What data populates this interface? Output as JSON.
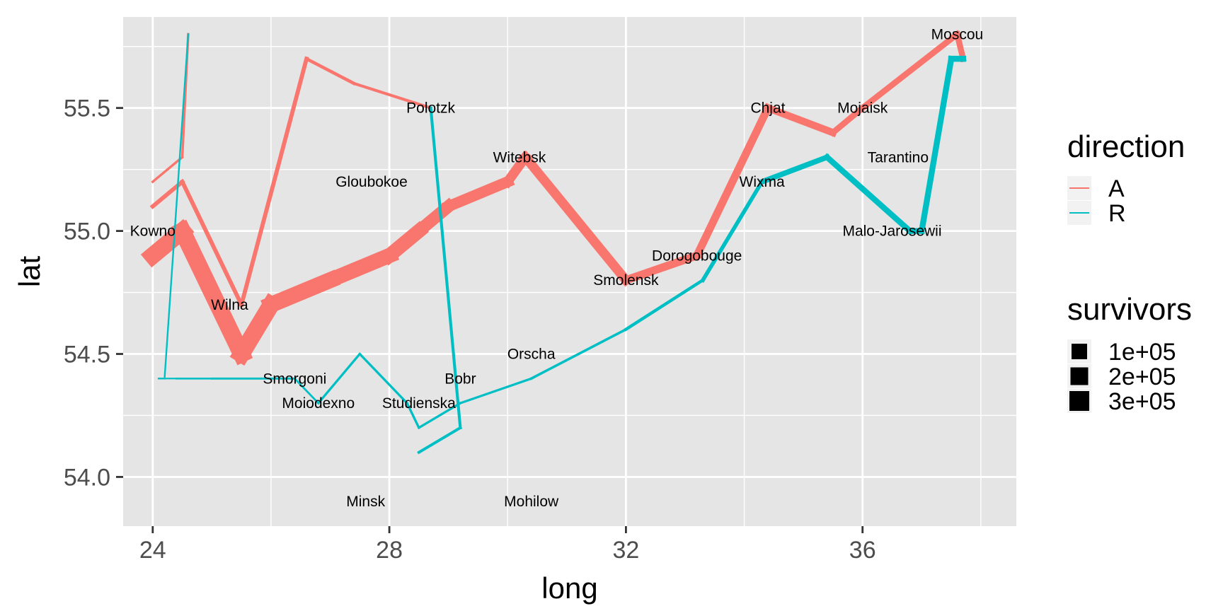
{
  "chart_data": {
    "type": "line",
    "xlabel": "long",
    "ylabel": "lat",
    "xlim": [
      23.5,
      38.6
    ],
    "ylim": [
      53.8,
      55.87
    ],
    "x_ticks": [
      24,
      28,
      32,
      36
    ],
    "x_tick_labels": [
      "24",
      "28",
      "32",
      "36"
    ],
    "y_ticks": [
      54.0,
      54.5,
      55.0,
      55.5
    ],
    "y_tick_labels": [
      "54.0",
      "54.5",
      "55.0",
      "55.5"
    ],
    "panel_background": "#e5e5e5",
    "grid": true,
    "legend": {
      "position": "right",
      "direction": {
        "title": "direction",
        "entries": [
          {
            "label": "A",
            "color": "#f8766d"
          },
          {
            "label": "R",
            "color": "#00bfc4"
          }
        ]
      },
      "survivors": {
        "title": "survivors",
        "entries": [
          "1e+05",
          "2e+05",
          "3e+05"
        ]
      }
    },
    "troops": [
      {
        "group": 1,
        "direction": "A",
        "points": [
          [
            24.0,
            54.9,
            340000
          ],
          [
            24.5,
            55.0,
            340000
          ],
          [
            25.5,
            54.5,
            340000
          ],
          [
            26.0,
            54.7,
            320000
          ],
          [
            27.0,
            54.8,
            300000
          ],
          [
            28.0,
            54.9,
            280000
          ],
          [
            28.5,
            55.0,
            240000
          ],
          [
            29.0,
            55.1,
            210000
          ],
          [
            30.0,
            55.2,
            180000
          ],
          [
            30.3,
            55.3,
            175000
          ],
          [
            32.0,
            54.8,
            145000
          ],
          [
            33.2,
            54.9,
            140000
          ],
          [
            34.4,
            55.5,
            127100
          ],
          [
            35.5,
            55.4,
            100000
          ],
          [
            36.0,
            55.5,
            100000
          ],
          [
            37.6,
            55.8,
            100000
          ],
          [
            37.7,
            55.7,
            100000
          ]
        ]
      },
      {
        "group": 1,
        "direction": "R",
        "points": [
          [
            37.7,
            55.7,
            100000
          ],
          [
            37.5,
            55.7,
            98000
          ],
          [
            37.0,
            55.0,
            97000
          ],
          [
            36.8,
            55.0,
            96000
          ],
          [
            35.4,
            55.3,
            87000
          ],
          [
            34.3,
            55.2,
            55000
          ],
          [
            33.3,
            54.8,
            37000
          ],
          [
            32.0,
            54.6,
            24000
          ],
          [
            30.4,
            54.4,
            20000
          ],
          [
            29.2,
            54.3,
            20000
          ],
          [
            28.5,
            54.2,
            20000
          ],
          [
            28.3,
            54.3,
            20000
          ],
          [
            27.5,
            54.5,
            20000
          ],
          [
            26.8,
            54.3,
            12000
          ],
          [
            26.4,
            54.4,
            14000
          ],
          [
            25.0,
            54.4,
            8000
          ],
          [
            24.4,
            54.4,
            4000
          ],
          [
            24.2,
            54.4,
            4000
          ],
          [
            24.1,
            54.4,
            4000
          ]
        ]
      },
      {
        "group": 2,
        "direction": "A",
        "points": [
          [
            24.0,
            55.1,
            60000
          ],
          [
            24.5,
            55.2,
            60000
          ],
          [
            25.5,
            54.7,
            60000
          ],
          [
            26.6,
            55.7,
            40000
          ],
          [
            27.4,
            55.6,
            33000
          ],
          [
            28.7,
            55.5,
            33000
          ]
        ]
      },
      {
        "group": 2,
        "direction": "R",
        "points": [
          [
            28.7,
            55.5,
            33000
          ],
          [
            29.2,
            54.2,
            30000
          ],
          [
            28.5,
            54.1,
            30000
          ]
        ]
      },
      {
        "group": 3,
        "direction": "A",
        "points": [
          [
            24.0,
            55.2,
            22000
          ],
          [
            24.5,
            55.3,
            22000
          ],
          [
            24.6,
            55.8,
            6000
          ]
        ]
      },
      {
        "group": 3,
        "direction": "R",
        "points": [
          [
            24.6,
            55.8,
            6000
          ],
          [
            24.2,
            54.4,
            6000
          ],
          [
            24.1,
            54.4,
            6000
          ]
        ]
      }
    ],
    "cities": [
      {
        "name": "Kowno",
        "long": 24.0,
        "lat": 55.0
      },
      {
        "name": "Wilna",
        "long": 25.3,
        "lat": 54.7
      },
      {
        "name": "Smorgoni",
        "long": 26.4,
        "lat": 54.4
      },
      {
        "name": "Moiodexno",
        "long": 26.8,
        "lat": 54.3
      },
      {
        "name": "Gloubokoe",
        "long": 27.7,
        "lat": 55.2
      },
      {
        "name": "Minsk",
        "long": 27.6,
        "lat": 53.9
      },
      {
        "name": "Studienska",
        "long": 28.5,
        "lat": 54.3
      },
      {
        "name": "Polotzk",
        "long": 28.7,
        "lat": 55.5
      },
      {
        "name": "Bobr",
        "long": 29.2,
        "lat": 54.4
      },
      {
        "name": "Witebsk",
        "long": 30.2,
        "lat": 55.3
      },
      {
        "name": "Orscha",
        "long": 30.4,
        "lat": 54.5
      },
      {
        "name": "Mohilow",
        "long": 30.4,
        "lat": 53.9
      },
      {
        "name": "Smolensk",
        "long": 32.0,
        "lat": 54.8
      },
      {
        "name": "Dorogobouge",
        "long": 33.2,
        "lat": 54.9
      },
      {
        "name": "Wixma",
        "long": 34.3,
        "lat": 55.2
      },
      {
        "name": "Chjat",
        "long": 34.4,
        "lat": 55.5
      },
      {
        "name": "Mojaisk",
        "long": 36.0,
        "lat": 55.5
      },
      {
        "name": "Moscou",
        "long": 37.6,
        "lat": 55.8
      },
      {
        "name": "Tarantino",
        "long": 36.6,
        "lat": 55.3
      },
      {
        "name": "Malo-Jarosewii",
        "long": 36.5,
        "lat": 55.0
      }
    ]
  }
}
